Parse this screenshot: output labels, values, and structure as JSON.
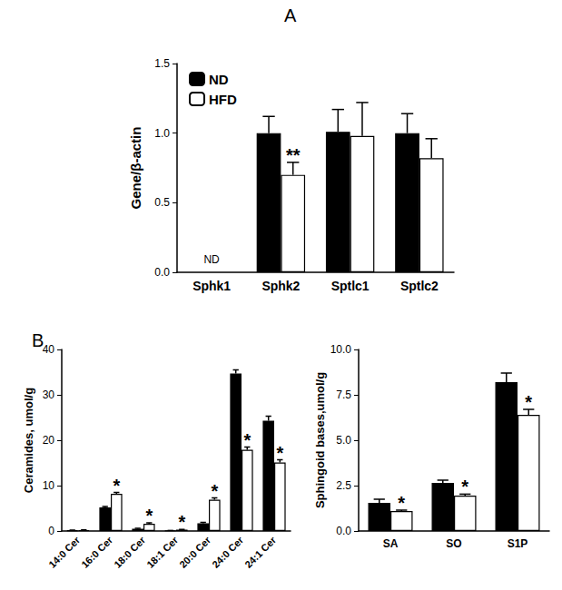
{
  "chart_data": [
    {
      "type": "bar",
      "title": "A",
      "y_label": "Gene/β-actin",
      "categories": [
        "Sphk1",
        "Sphk2",
        "Sptlc1",
        "Sptlc2"
      ],
      "series": [
        {
          "name": "ND",
          "color": "#000000",
          "values": [
            null,
            1.0,
            1.01,
            1.0
          ],
          "errors": [
            null,
            0.12,
            0.16,
            0.14
          ]
        },
        {
          "name": "HFD",
          "color": "#ffffff",
          "values": [
            null,
            0.7,
            0.98,
            0.82
          ],
          "errors": [
            null,
            0.09,
            0.24,
            0.14
          ]
        }
      ],
      "ylim": [
        0,
        1.5
      ],
      "yticks": [
        {
          "value": 0,
          "label": "0.0"
        },
        {
          "value": 0.5,
          "label": "0.5"
        },
        {
          "value": 1,
          "label": "1.0"
        },
        {
          "value": 1.5,
          "label": "1.5"
        }
      ],
      "grid": false,
      "legend": "upper left",
      "annotations": [
        {
          "category": "Sphk1",
          "text": "ND"
        },
        {
          "category": "Sphk2",
          "series": "HFD",
          "text": "**"
        }
      ]
    },
    {
      "type": "bar",
      "title": "B",
      "y_label": "Ceramides, umol/g",
      "categories": [
        "14:0 Cer",
        "16:0 Cer",
        "18:0 Cer",
        "18:1 Cer",
        "20:0 Cer",
        "24:0 Cer",
        "24:1 Cer"
      ],
      "series": [
        {
          "name": "ND",
          "color": "#000000",
          "values": [
            0.15,
            5.2,
            0.5,
            0.1,
            1.7,
            34.7,
            24.3
          ],
          "errors": [
            0.05,
            0.2,
            0.1,
            0.02,
            0.2,
            0.8,
            1.0
          ]
        },
        {
          "name": "HFD",
          "color": "#ffffff",
          "values": [
            0.2,
            8.2,
            1.6,
            0.3,
            6.9,
            17.9,
            15.1
          ],
          "errors": [
            0.05,
            0.3,
            0.2,
            0.05,
            0.4,
            0.6,
            0.6
          ]
        }
      ],
      "ylim": [
        0,
        40
      ],
      "yticks": [
        0,
        10,
        20,
        30,
        40
      ],
      "grid": false,
      "annotations": [
        {
          "category": "16:0 Cer",
          "series": "HFD",
          "text": "*"
        },
        {
          "category": "18:0 Cer",
          "series": "HFD",
          "text": "*"
        },
        {
          "category": "18:1 Cer",
          "series": "HFD",
          "text": "*"
        },
        {
          "category": "20:0 Cer",
          "series": "HFD",
          "text": "*"
        },
        {
          "category": "24:0 Cer",
          "series": "HFD",
          "text": "*"
        },
        {
          "category": "24:1 Cer",
          "series": "HFD",
          "text": "*"
        }
      ]
    },
    {
      "type": "bar",
      "y_label": "Sphingoid bases,umol/g",
      "categories": [
        "SA",
        "SO",
        "S1P"
      ],
      "series": [
        {
          "name": "ND",
          "color": "#000000",
          "values": [
            1.55,
            2.65,
            8.2
          ],
          "errors": [
            0.2,
            0.15,
            0.5
          ]
        },
        {
          "name": "HFD",
          "color": "#ffffff",
          "values": [
            1.1,
            1.95,
            6.4
          ],
          "errors": [
            0.05,
            0.08,
            0.3
          ]
        }
      ],
      "ylim": [
        0,
        10
      ],
      "yticks": [
        {
          "value": 0,
          "label": "0.0"
        },
        {
          "value": 2.5,
          "label": "2.5"
        },
        {
          "value": 5,
          "label": "5.0"
        },
        {
          "value": 7.5,
          "label": "7.5"
        },
        {
          "value": 10,
          "label": "10.0"
        }
      ],
      "grid": false,
      "annotations": [
        {
          "category": "SA",
          "series": "HFD",
          "text": "*"
        },
        {
          "category": "SO",
          "series": "HFD",
          "text": "*"
        },
        {
          "category": "S1P",
          "series": "HFD",
          "text": "*"
        }
      ]
    }
  ]
}
